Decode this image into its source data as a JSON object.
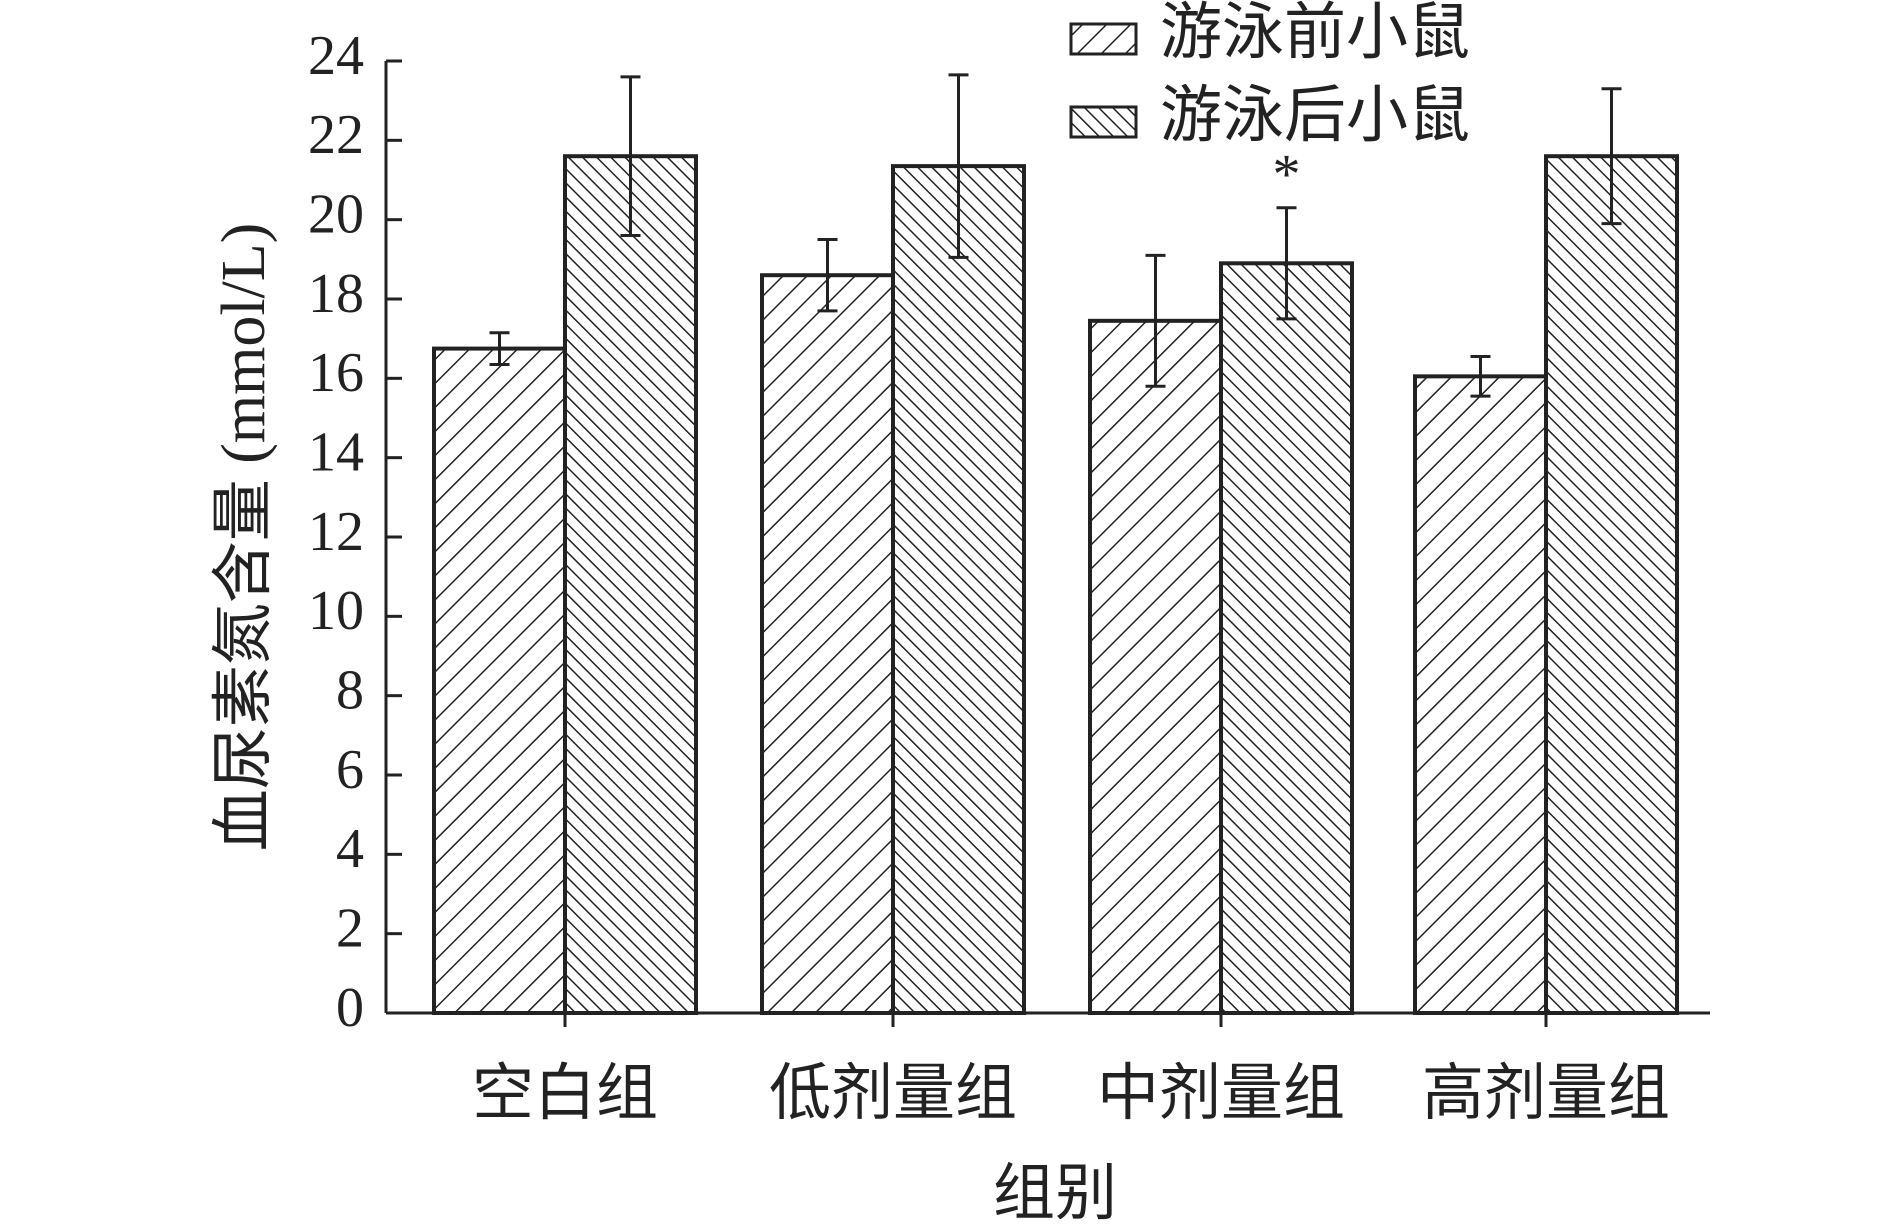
{
  "chart_data": {
    "type": "bar",
    "x_label": "组别",
    "y_label": "血尿素氮含量 (mmol/L)",
    "categories": [
      "空白组",
      "低剂量组",
      "中剂量组",
      "高剂量组"
    ],
    "series": [
      {
        "name": "游泳前小鼠",
        "color": "#222222",
        "hatch": "sparse",
        "values": [
          16.75,
          18.6,
          17.45,
          16.05
        ],
        "errors": [
          0.4,
          0.9,
          1.65,
          0.5
        ]
      },
      {
        "name": "游泳后小鼠",
        "color": "#222222",
        "hatch": "dense",
        "values": [
          21.6,
          21.35,
          18.9,
          21.6
        ],
        "errors": [
          2.0,
          2.3,
          1.4,
          1.7
        ]
      }
    ],
    "annotations": [
      {
        "text": "*",
        "category": 2,
        "series": 1
      }
    ],
    "ylim": [
      0,
      24
    ],
    "yticks": [
      0,
      2,
      4,
      6,
      8,
      10,
      12,
      14,
      16,
      18,
      20,
      22,
      24
    ],
    "legend": "top-right"
  }
}
